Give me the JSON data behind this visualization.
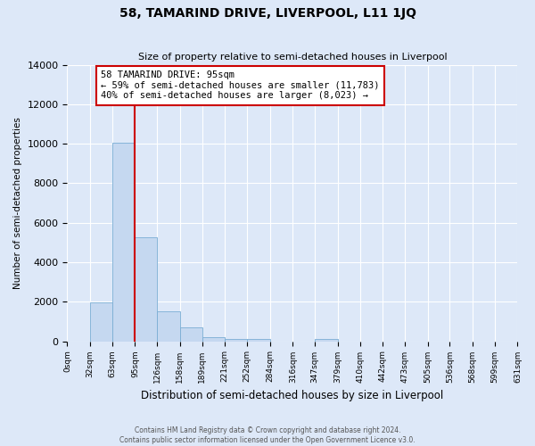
{
  "title": "58, TAMARIND DRIVE, LIVERPOOL, L11 1JQ",
  "subtitle": "Size of property relative to semi-detached houses in Liverpool",
  "xlabel": "Distribution of semi-detached houses by size in Liverpool",
  "ylabel": "Number of semi-detached properties",
  "footnote": "Contains HM Land Registry data © Crown copyright and database right 2024.\nContains public sector information licensed under the Open Government Licence v3.0.",
  "annotation_title": "58 TAMARIND DRIVE: 95sqm",
  "annotation_line1": "← 59% of semi-detached houses are smaller (11,783)",
  "annotation_line2": "40% of semi-detached houses are larger (8,023) →",
  "property_size": 95,
  "bin_edges": [
    0,
    32,
    63,
    95,
    126,
    158,
    189,
    221,
    252,
    284,
    316,
    347,
    379,
    410,
    442,
    473,
    505,
    536,
    568,
    599,
    631
  ],
  "bar_heights": [
    0,
    1950,
    10050,
    5250,
    1500,
    700,
    200,
    100,
    100,
    0,
    0,
    100,
    0,
    0,
    0,
    0,
    0,
    0,
    0,
    0
  ],
  "bar_color": "#c5d8f0",
  "bar_edgecolor": "#7aadd4",
  "vline_color": "#cc0000",
  "annotation_box_edgecolor": "#cc0000",
  "background_color": "#dde8f8",
  "plot_bg_color": "#dde8f8",
  "grid_color": "#ffffff",
  "ylim": [
    0,
    14000
  ],
  "yticks": [
    0,
    2000,
    4000,
    6000,
    8000,
    10000,
    12000,
    14000
  ]
}
